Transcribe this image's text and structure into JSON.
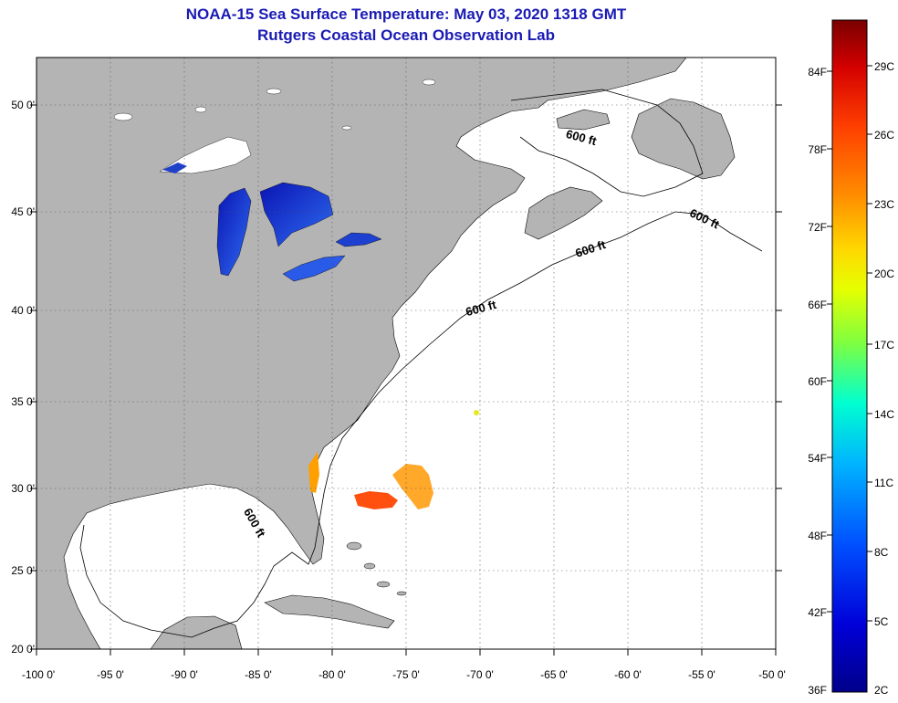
{
  "title": "NOAA-15 Sea Surface Temperature:  May 03, 2020 1318 GMT",
  "subtitle": "Rutgers Coastal Ocean Observation Lab",
  "lat_labels": [
    "50 0'",
    "45 0'",
    "40 0'",
    "35 0'",
    "30 0'",
    "25 0'",
    "20 0'"
  ],
  "lon_labels": [
    "-100 0'",
    "-95 0'",
    "-90 0'",
    "-85 0'",
    "-80 0'",
    "-75 0'",
    "-70 0'",
    "-65 0'",
    "-60 0'",
    "-55 0'",
    "-50 0'"
  ],
  "depth_label": "600 ft",
  "colorbar": {
    "fahrenheit": [
      "84F",
      "78F",
      "72F",
      "66F",
      "60F",
      "54F",
      "48F",
      "42F",
      "36F"
    ],
    "celsius": [
      "29C",
      "26C",
      "23C",
      "20C",
      "17C",
      "14C",
      "11C",
      "8C",
      "5C",
      "2C"
    ],
    "colors": [
      "#7a0000",
      "#d40000",
      "#ff4000",
      "#ff8c00",
      "#ffd700",
      "#e6ff00",
      "#7fff3f",
      "#00ffd0",
      "#00b4ff",
      "#0050ff",
      "#0000c8",
      "#00008a"
    ]
  },
  "colors": {
    "land": "#b4b4b4",
    "ocean": "#ffffff",
    "lakes": "#1a3cd2",
    "warm_sst": "#ff9a00",
    "title": "#1a1ab4"
  }
}
